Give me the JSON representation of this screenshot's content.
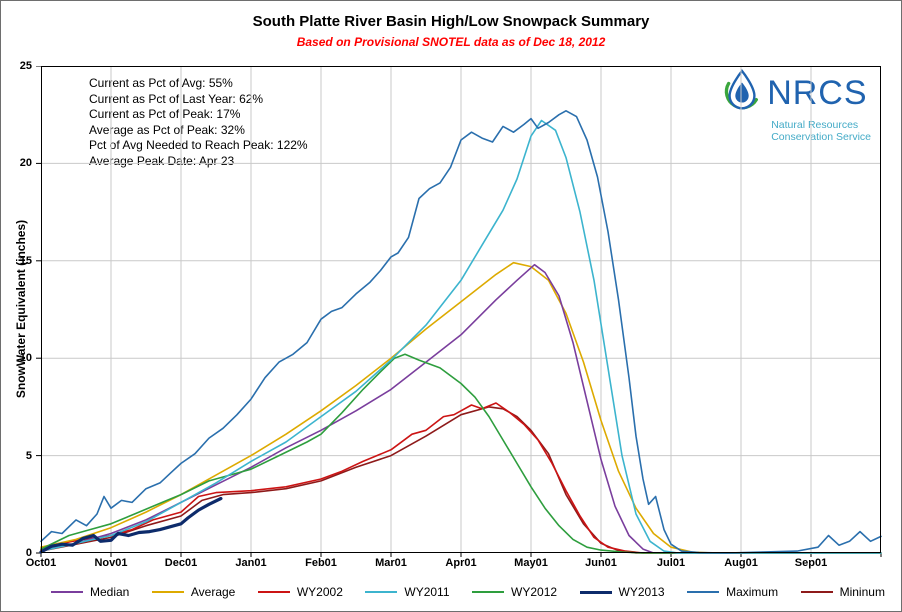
{
  "chart_data": {
    "type": "line",
    "title": "South Platte River Basin High/Low Snowpack Summary",
    "subtitle": "Based on Provisional SNOTEL data as of Dec 18, 2012",
    "subtitle_color": "#FF0000",
    "ylabel": "SnowWater Equivalent (inches)",
    "xlabel": "",
    "ylim": [
      0,
      25
    ],
    "yticks": [
      0,
      5,
      10,
      15,
      20,
      25
    ],
    "x_categories": [
      "Oct01",
      "Nov01",
      "Dec01",
      "Jan01",
      "Feb01",
      "Mar01",
      "Apr01",
      "May01",
      "Jun01",
      "Jul01",
      "Aug01",
      "Sep01"
    ],
    "x_axis_note": "x values are months elapsed since Oct 1 (0 = Oct01, 12 = end of Sep)",
    "grid": true,
    "grid_color": "#C9C9C9",
    "legend_position": "bottom",
    "series": [
      {
        "name": "Median",
        "color": "#7A3E9D",
        "width": 1.6,
        "z": 4,
        "points": [
          [
            0,
            0.2
          ],
          [
            0.5,
            0.5
          ],
          [
            1,
            1
          ],
          [
            1.5,
            1.7
          ],
          [
            2,
            2.6
          ],
          [
            2.5,
            3.5
          ],
          [
            3,
            4.4
          ],
          [
            3.5,
            5.4
          ],
          [
            4,
            6.3
          ],
          [
            4.5,
            7.3
          ],
          [
            5,
            8.4
          ],
          [
            5.5,
            9.8
          ],
          [
            6,
            11.2
          ],
          [
            6.5,
            13
          ],
          [
            6.8,
            14
          ],
          [
            7.05,
            14.8
          ],
          [
            7.2,
            14.4
          ],
          [
            7.4,
            13.2
          ],
          [
            7.6,
            10.8
          ],
          [
            7.8,
            7.8
          ],
          [
            8,
            4.8
          ],
          [
            8.2,
            2.4
          ],
          [
            8.4,
            0.9
          ],
          [
            8.6,
            0.2
          ],
          [
            8.75,
            0
          ],
          [
            12,
            0
          ]
        ]
      },
      {
        "name": "Average",
        "color": "#DDAA00",
        "width": 1.6,
        "z": 3,
        "points": [
          [
            0,
            0.3
          ],
          [
            0.5,
            0.7
          ],
          [
            1,
            1.3
          ],
          [
            1.5,
            2.1
          ],
          [
            2,
            3
          ],
          [
            2.5,
            4
          ],
          [
            3,
            5
          ],
          [
            3.5,
            6.1
          ],
          [
            4,
            7.3
          ],
          [
            4.5,
            8.6
          ],
          [
            5,
            10
          ],
          [
            5.5,
            11.5
          ],
          [
            6,
            12.9
          ],
          [
            6.5,
            14.3
          ],
          [
            6.75,
            14.9
          ],
          [
            7,
            14.7
          ],
          [
            7.25,
            14
          ],
          [
            7.5,
            12.3
          ],
          [
            7.75,
            9.8
          ],
          [
            8,
            6.8
          ],
          [
            8.25,
            4.2
          ],
          [
            8.5,
            2.3
          ],
          [
            8.75,
            1
          ],
          [
            9,
            0.3
          ],
          [
            9.3,
            0.05
          ],
          [
            9.6,
            0
          ],
          [
            12,
            0
          ]
        ]
      },
      {
        "name": "WY2002",
        "color": "#CC1414",
        "width": 1.6,
        "z": 2,
        "points": [
          [
            0,
            0.15
          ],
          [
            0.3,
            0.5
          ],
          [
            0.6,
            0.7
          ],
          [
            1,
            0.9
          ],
          [
            1.3,
            1.2
          ],
          [
            1.6,
            1.7
          ],
          [
            2,
            2.1
          ],
          [
            2.25,
            2.9
          ],
          [
            2.5,
            3.1
          ],
          [
            3,
            3.2
          ],
          [
            3.5,
            3.4
          ],
          [
            4,
            3.8
          ],
          [
            4.3,
            4.2
          ],
          [
            4.6,
            4.7
          ],
          [
            5,
            5.3
          ],
          [
            5.3,
            6.1
          ],
          [
            5.5,
            6.3
          ],
          [
            5.75,
            7
          ],
          [
            5.9,
            7.1
          ],
          [
            6,
            7.3
          ],
          [
            6.15,
            7.6
          ],
          [
            6.3,
            7.4
          ],
          [
            6.5,
            7.7
          ],
          [
            6.7,
            7.2
          ],
          [
            6.9,
            6.6
          ],
          [
            7.1,
            5.8
          ],
          [
            7.3,
            4.6
          ],
          [
            7.5,
            3.2
          ],
          [
            7.7,
            1.9
          ],
          [
            7.9,
            0.8
          ],
          [
            8.1,
            0.3
          ],
          [
            8.35,
            0.1
          ],
          [
            8.6,
            0
          ],
          [
            12,
            0
          ]
        ]
      },
      {
        "name": "WY2011",
        "color": "#3CB4CE",
        "width": 1.6,
        "z": 6,
        "points": [
          [
            0,
            0.1
          ],
          [
            0.5,
            0.5
          ],
          [
            1,
            0.9
          ],
          [
            1.5,
            1.6
          ],
          [
            2,
            2.6
          ],
          [
            2.5,
            3.6
          ],
          [
            3,
            4.7
          ],
          [
            3.5,
            5.7
          ],
          [
            4,
            7
          ],
          [
            4.5,
            8.3
          ],
          [
            5,
            9.9
          ],
          [
            5.5,
            11.7
          ],
          [
            6,
            14
          ],
          [
            6.3,
            15.8
          ],
          [
            6.6,
            17.6
          ],
          [
            6.8,
            19.2
          ],
          [
            7,
            21.4
          ],
          [
            7.15,
            22.2
          ],
          [
            7.35,
            21.7
          ],
          [
            7.5,
            20.3
          ],
          [
            7.7,
            17.5
          ],
          [
            7.9,
            14
          ],
          [
            8.1,
            9.5
          ],
          [
            8.3,
            5
          ],
          [
            8.5,
            2
          ],
          [
            8.7,
            0.6
          ],
          [
            8.9,
            0.1
          ],
          [
            9.1,
            0
          ],
          [
            12,
            0
          ]
        ]
      },
      {
        "name": "WY2012",
        "color": "#2E9E3E",
        "width": 1.6,
        "z": 5,
        "points": [
          [
            0,
            0.2
          ],
          [
            0.4,
            0.9
          ],
          [
            0.7,
            1.2
          ],
          [
            1,
            1.5
          ],
          [
            1.4,
            2.1
          ],
          [
            1.8,
            2.7
          ],
          [
            2,
            3
          ],
          [
            2.4,
            3.7
          ],
          [
            2.8,
            4.1
          ],
          [
            3,
            4.3
          ],
          [
            3.4,
            5
          ],
          [
            3.8,
            5.7
          ],
          [
            4,
            6.1
          ],
          [
            4.3,
            7.2
          ],
          [
            4.6,
            8.4
          ],
          [
            4.85,
            9.3
          ],
          [
            5.05,
            10
          ],
          [
            5.2,
            10.2
          ],
          [
            5.4,
            9.9
          ],
          [
            5.7,
            9.5
          ],
          [
            6,
            8.7
          ],
          [
            6.2,
            8
          ],
          [
            6.4,
            7
          ],
          [
            6.6,
            5.8
          ],
          [
            6.8,
            4.6
          ],
          [
            7,
            3.4
          ],
          [
            7.2,
            2.3
          ],
          [
            7.4,
            1.4
          ],
          [
            7.6,
            0.7
          ],
          [
            7.8,
            0.3
          ],
          [
            8,
            0.15
          ],
          [
            8.3,
            0.05
          ],
          [
            8.6,
            0
          ],
          [
            12,
            0
          ]
        ]
      },
      {
        "name": "WY2013",
        "color": "#0D2B6B",
        "width": 3.2,
        "z": 8,
        "points": [
          [
            0,
            0.05
          ],
          [
            0.15,
            0.35
          ],
          [
            0.3,
            0.45
          ],
          [
            0.45,
            0.4
          ],
          [
            0.6,
            0.75
          ],
          [
            0.75,
            0.9
          ],
          [
            0.85,
            0.6
          ],
          [
            1,
            0.65
          ],
          [
            1.1,
            1
          ],
          [
            1.25,
            0.9
          ],
          [
            1.4,
            1.05
          ],
          [
            1.55,
            1.1
          ],
          [
            1.7,
            1.2
          ],
          [
            1.85,
            1.35
          ],
          [
            2,
            1.5
          ],
          [
            2.1,
            1.8
          ],
          [
            2.25,
            2.2
          ],
          [
            2.4,
            2.5
          ],
          [
            2.57,
            2.8
          ]
        ]
      },
      {
        "name": "Maximum",
        "color": "#2A6FAD",
        "width": 1.6,
        "z": 7,
        "points": [
          [
            0,
            0.6
          ],
          [
            0.15,
            1.1
          ],
          [
            0.3,
            1
          ],
          [
            0.5,
            1.7
          ],
          [
            0.65,
            1.4
          ],
          [
            0.8,
            2
          ],
          [
            0.9,
            2.9
          ],
          [
            1,
            2.3
          ],
          [
            1.15,
            2.7
          ],
          [
            1.3,
            2.6
          ],
          [
            1.5,
            3.3
          ],
          [
            1.7,
            3.6
          ],
          [
            1.85,
            4.1
          ],
          [
            2,
            4.6
          ],
          [
            2.2,
            5.1
          ],
          [
            2.4,
            5.9
          ],
          [
            2.6,
            6.4
          ],
          [
            2.8,
            7.1
          ],
          [
            3,
            7.9
          ],
          [
            3.2,
            9
          ],
          [
            3.4,
            9.8
          ],
          [
            3.6,
            10.2
          ],
          [
            3.8,
            10.8
          ],
          [
            4,
            12
          ],
          [
            4.15,
            12.4
          ],
          [
            4.3,
            12.6
          ],
          [
            4.5,
            13.3
          ],
          [
            4.7,
            13.9
          ],
          [
            4.85,
            14.5
          ],
          [
            5,
            15.2
          ],
          [
            5.1,
            15.4
          ],
          [
            5.25,
            16.2
          ],
          [
            5.4,
            18.2
          ],
          [
            5.55,
            18.7
          ],
          [
            5.7,
            19
          ],
          [
            5.85,
            19.8
          ],
          [
            6,
            21.2
          ],
          [
            6.15,
            21.6
          ],
          [
            6.3,
            21.3
          ],
          [
            6.45,
            21.1
          ],
          [
            6.6,
            21.9
          ],
          [
            6.75,
            21.6
          ],
          [
            6.9,
            22
          ],
          [
            7,
            22.3
          ],
          [
            7.1,
            21.8
          ],
          [
            7.25,
            22.1
          ],
          [
            7.4,
            22.5
          ],
          [
            7.5,
            22.7
          ],
          [
            7.65,
            22.4
          ],
          [
            7.8,
            21.2
          ],
          [
            7.95,
            19.3
          ],
          [
            8.1,
            16.5
          ],
          [
            8.25,
            13
          ],
          [
            8.4,
            9
          ],
          [
            8.5,
            6
          ],
          [
            8.6,
            3.8
          ],
          [
            8.68,
            2.5
          ],
          [
            8.78,
            2.9
          ],
          [
            8.9,
            1.2
          ],
          [
            9,
            0.45
          ],
          [
            9.15,
            0.1
          ],
          [
            9.4,
            0.02
          ],
          [
            9.8,
            0
          ],
          [
            10.3,
            0.05
          ],
          [
            10.8,
            0.1
          ],
          [
            11.1,
            0.3
          ],
          [
            11.25,
            0.9
          ],
          [
            11.4,
            0.4
          ],
          [
            11.55,
            0.6
          ],
          [
            11.7,
            1.1
          ],
          [
            11.85,
            0.6
          ],
          [
            12,
            0.85
          ]
        ]
      },
      {
        "name": "Mininum",
        "color": "#8E1A1A",
        "width": 1.6,
        "z": 1,
        "points": [
          [
            0,
            0.1
          ],
          [
            0.5,
            0.45
          ],
          [
            1,
            0.8
          ],
          [
            1.5,
            1.4
          ],
          [
            2,
            1.9
          ],
          [
            2.3,
            2.7
          ],
          [
            2.6,
            3
          ],
          [
            3,
            3.1
          ],
          [
            3.5,
            3.3
          ],
          [
            4,
            3.7
          ],
          [
            4.5,
            4.4
          ],
          [
            5,
            5
          ],
          [
            5.5,
            6
          ],
          [
            6,
            7.1
          ],
          [
            6.4,
            7.5
          ],
          [
            6.6,
            7.4
          ],
          [
            6.8,
            7
          ],
          [
            7,
            6.3
          ],
          [
            7.25,
            5.1
          ],
          [
            7.5,
            3
          ],
          [
            7.75,
            1.5
          ],
          [
            8,
            0.5
          ],
          [
            8.25,
            0.12
          ],
          [
            8.5,
            0
          ],
          [
            12,
            0
          ]
        ]
      }
    ]
  },
  "stats_box": {
    "lines": [
      "Current as Pct of Avg: 55%",
      "Current as Pct of Last Year: 62%",
      "Current as Pct of Peak: 17%",
      "Average as Pct of Peak: 32%",
      "Pct of Avg Needed to Reach Peak: 122%",
      "Average Peak Date: Apr 23"
    ]
  },
  "logo": {
    "acronym": "NRCS",
    "org_line1": "Natural Resources",
    "org_line2": "Conservation Service",
    "acronym_color": "#2063AF",
    "org_color": "#44ABC7",
    "drop_color": "#2063AF",
    "swoosh_color": "#3AA63C"
  }
}
